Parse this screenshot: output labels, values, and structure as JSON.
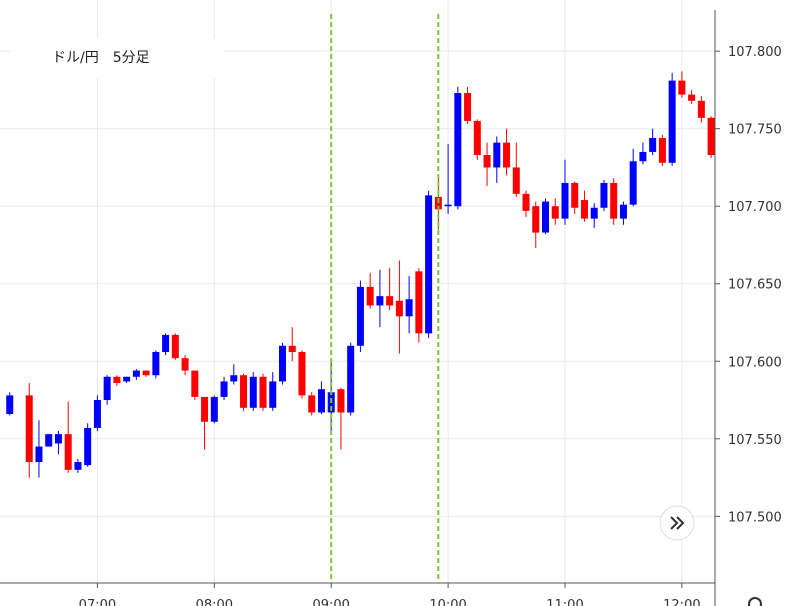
{
  "chart_data": {
    "type": "candlestick",
    "title": "ドル/円　5分足",
    "up_color": "#0000ff",
    "down_color": "#ff0000",
    "marker_color": "#7dc832",
    "markers": [
      "09:00",
      "09:55"
    ],
    "x": [
      "06:15",
      "06:25",
      "06:30",
      "06:35",
      "06:40",
      "06:45",
      "06:50",
      "06:55",
      "07:00",
      "07:05",
      "07:10",
      "07:15",
      "07:20",
      "07:25",
      "07:30",
      "07:35",
      "07:40",
      "07:45",
      "07:50",
      "07:55",
      "08:00",
      "08:05",
      "08:10",
      "08:15",
      "08:20",
      "08:25",
      "08:30",
      "08:35",
      "08:40",
      "08:45",
      "08:50",
      "08:55",
      "09:00",
      "09:05",
      "09:10",
      "09:15",
      "09:20",
      "09:25",
      "09:30",
      "09:35",
      "09:40",
      "09:45",
      "09:50",
      "09:55",
      "10:00",
      "10:05",
      "10:10",
      "10:15",
      "10:20",
      "10:25",
      "10:30",
      "10:35",
      "10:40",
      "10:45",
      "10:50",
      "10:55",
      "11:00",
      "11:05",
      "11:10",
      "11:15",
      "11:20",
      "11:25",
      "11:30",
      "11:35",
      "11:40",
      "11:45",
      "11:50",
      "11:55",
      "12:00",
      "12:05",
      "12:10",
      "12:15"
    ],
    "open": [
      107.566,
      107.578,
      107.535,
      107.545,
      107.547,
      107.553,
      107.53,
      107.533,
      107.557,
      107.575,
      107.59,
      107.587,
      107.59,
      107.594,
      107.591,
      107.606,
      107.617,
      107.602,
      107.594,
      107.577,
      107.561,
      107.577,
      107.587,
      107.591,
      107.57,
      107.59,
      107.57,
      107.587,
      107.61,
      107.606,
      107.578,
      107.567,
      107.567,
      107.582,
      107.567,
      107.61,
      107.648,
      107.636,
      107.642,
      107.639,
      107.629,
      107.658,
      107.618,
      107.706,
      107.7,
      107.7,
      107.773,
      107.755,
      107.733,
      107.725,
      107.741,
      107.725,
      107.708,
      107.7,
      107.683,
      107.7,
      107.692,
      107.715,
      107.704,
      107.692,
      107.699,
      107.715,
      107.692,
      107.701,
      107.729,
      107.735,
      107.744,
      107.728,
      107.781,
      107.772,
      107.768,
      107.757
    ],
    "high": [
      107.58,
      107.586,
      107.562,
      107.553,
      107.555,
      107.574,
      107.537,
      107.56,
      107.578,
      107.591,
      107.591,
      107.59,
      107.595,
      107.594,
      107.607,
      107.618,
      107.618,
      107.604,
      107.594,
      107.577,
      107.578,
      107.59,
      107.598,
      107.592,
      107.593,
      107.592,
      107.593,
      107.612,
      107.622,
      107.607,
      107.58,
      107.587,
      107.6,
      107.583,
      107.612,
      107.652,
      107.657,
      107.659,
      107.66,
      107.665,
      107.655,
      107.66,
      107.71,
      107.72,
      107.74,
      107.777,
      107.777,
      107.756,
      107.741,
      107.745,
      107.75,
      107.741,
      107.71,
      107.703,
      107.705,
      107.705,
      107.73,
      107.716,
      107.71,
      107.702,
      107.717,
      107.718,
      107.703,
      107.737,
      107.741,
      107.75,
      107.746,
      107.786,
      107.787,
      107.775,
      107.771,
      107.758
    ],
    "low": [
      107.565,
      107.525,
      107.525,
      107.545,
      107.54,
      107.528,
      107.528,
      107.532,
      107.555,
      107.572,
      107.584,
      107.586,
      107.588,
      107.59,
      107.589,
      107.604,
      107.601,
      107.591,
      107.575,
      107.543,
      107.56,
      107.575,
      107.585,
      107.568,
      107.568,
      107.568,
      107.568,
      107.585,
      107.6,
      107.576,
      107.565,
      107.566,
      107.553,
      107.543,
      107.565,
      107.606,
      107.634,
      107.622,
      107.633,
      107.605,
      107.618,
      107.612,
      107.615,
      107.685,
      107.695,
      107.698,
      107.753,
      107.73,
      107.713,
      107.715,
      107.72,
      107.706,
      107.693,
      107.673,
      107.682,
      107.688,
      107.688,
      107.695,
      107.69,
      107.686,
      107.697,
      107.688,
      107.688,
      107.7,
      107.727,
      107.733,
      107.726,
      107.726,
      107.77,
      107.766,
      107.754,
      107.731
    ],
    "close": [
      107.578,
      107.535,
      107.545,
      107.553,
      107.553,
      107.53,
      107.535,
      107.557,
      107.575,
      107.59,
      107.586,
      107.59,
      107.594,
      107.591,
      107.606,
      107.617,
      107.602,
      107.594,
      107.577,
      107.561,
      107.577,
      107.587,
      107.591,
      107.57,
      107.59,
      107.57,
      107.587,
      107.61,
      107.606,
      107.578,
      107.567,
      107.582,
      107.58,
      107.567,
      107.61,
      107.648,
      107.636,
      107.642,
      107.636,
      107.629,
      107.64,
      107.618,
      107.707,
      107.698,
      107.701,
      107.773,
      107.755,
      107.733,
      107.725,
      107.741,
      107.725,
      107.708,
      107.697,
      107.683,
      107.703,
      107.692,
      107.715,
      107.699,
      107.692,
      107.699,
      107.715,
      107.692,
      107.701,
      107.729,
      107.735,
      107.744,
      107.728,
      107.781,
      107.772,
      107.768,
      107.757,
      107.733
    ],
    "xlim": [
      "06:10",
      "12:17"
    ],
    "xticks": [
      "07:00",
      "08:00",
      "09:00",
      "10:00",
      "11:00",
      "12:00"
    ],
    "ylim": [
      107.457,
      107.833
    ],
    "yticks": [
      {
        "value": 107.5,
        "label": "107.500"
      },
      {
        "value": 107.55,
        "label": "107.550"
      },
      {
        "value": 107.6,
        "label": "107.600"
      },
      {
        "value": 107.65,
        "label": "107.650"
      },
      {
        "value": 107.7,
        "label": "107.700"
      },
      {
        "value": 107.75,
        "label": "107.750"
      },
      {
        "value": 107.8,
        "label": "107.800"
      }
    ],
    "grid": true
  }
}
